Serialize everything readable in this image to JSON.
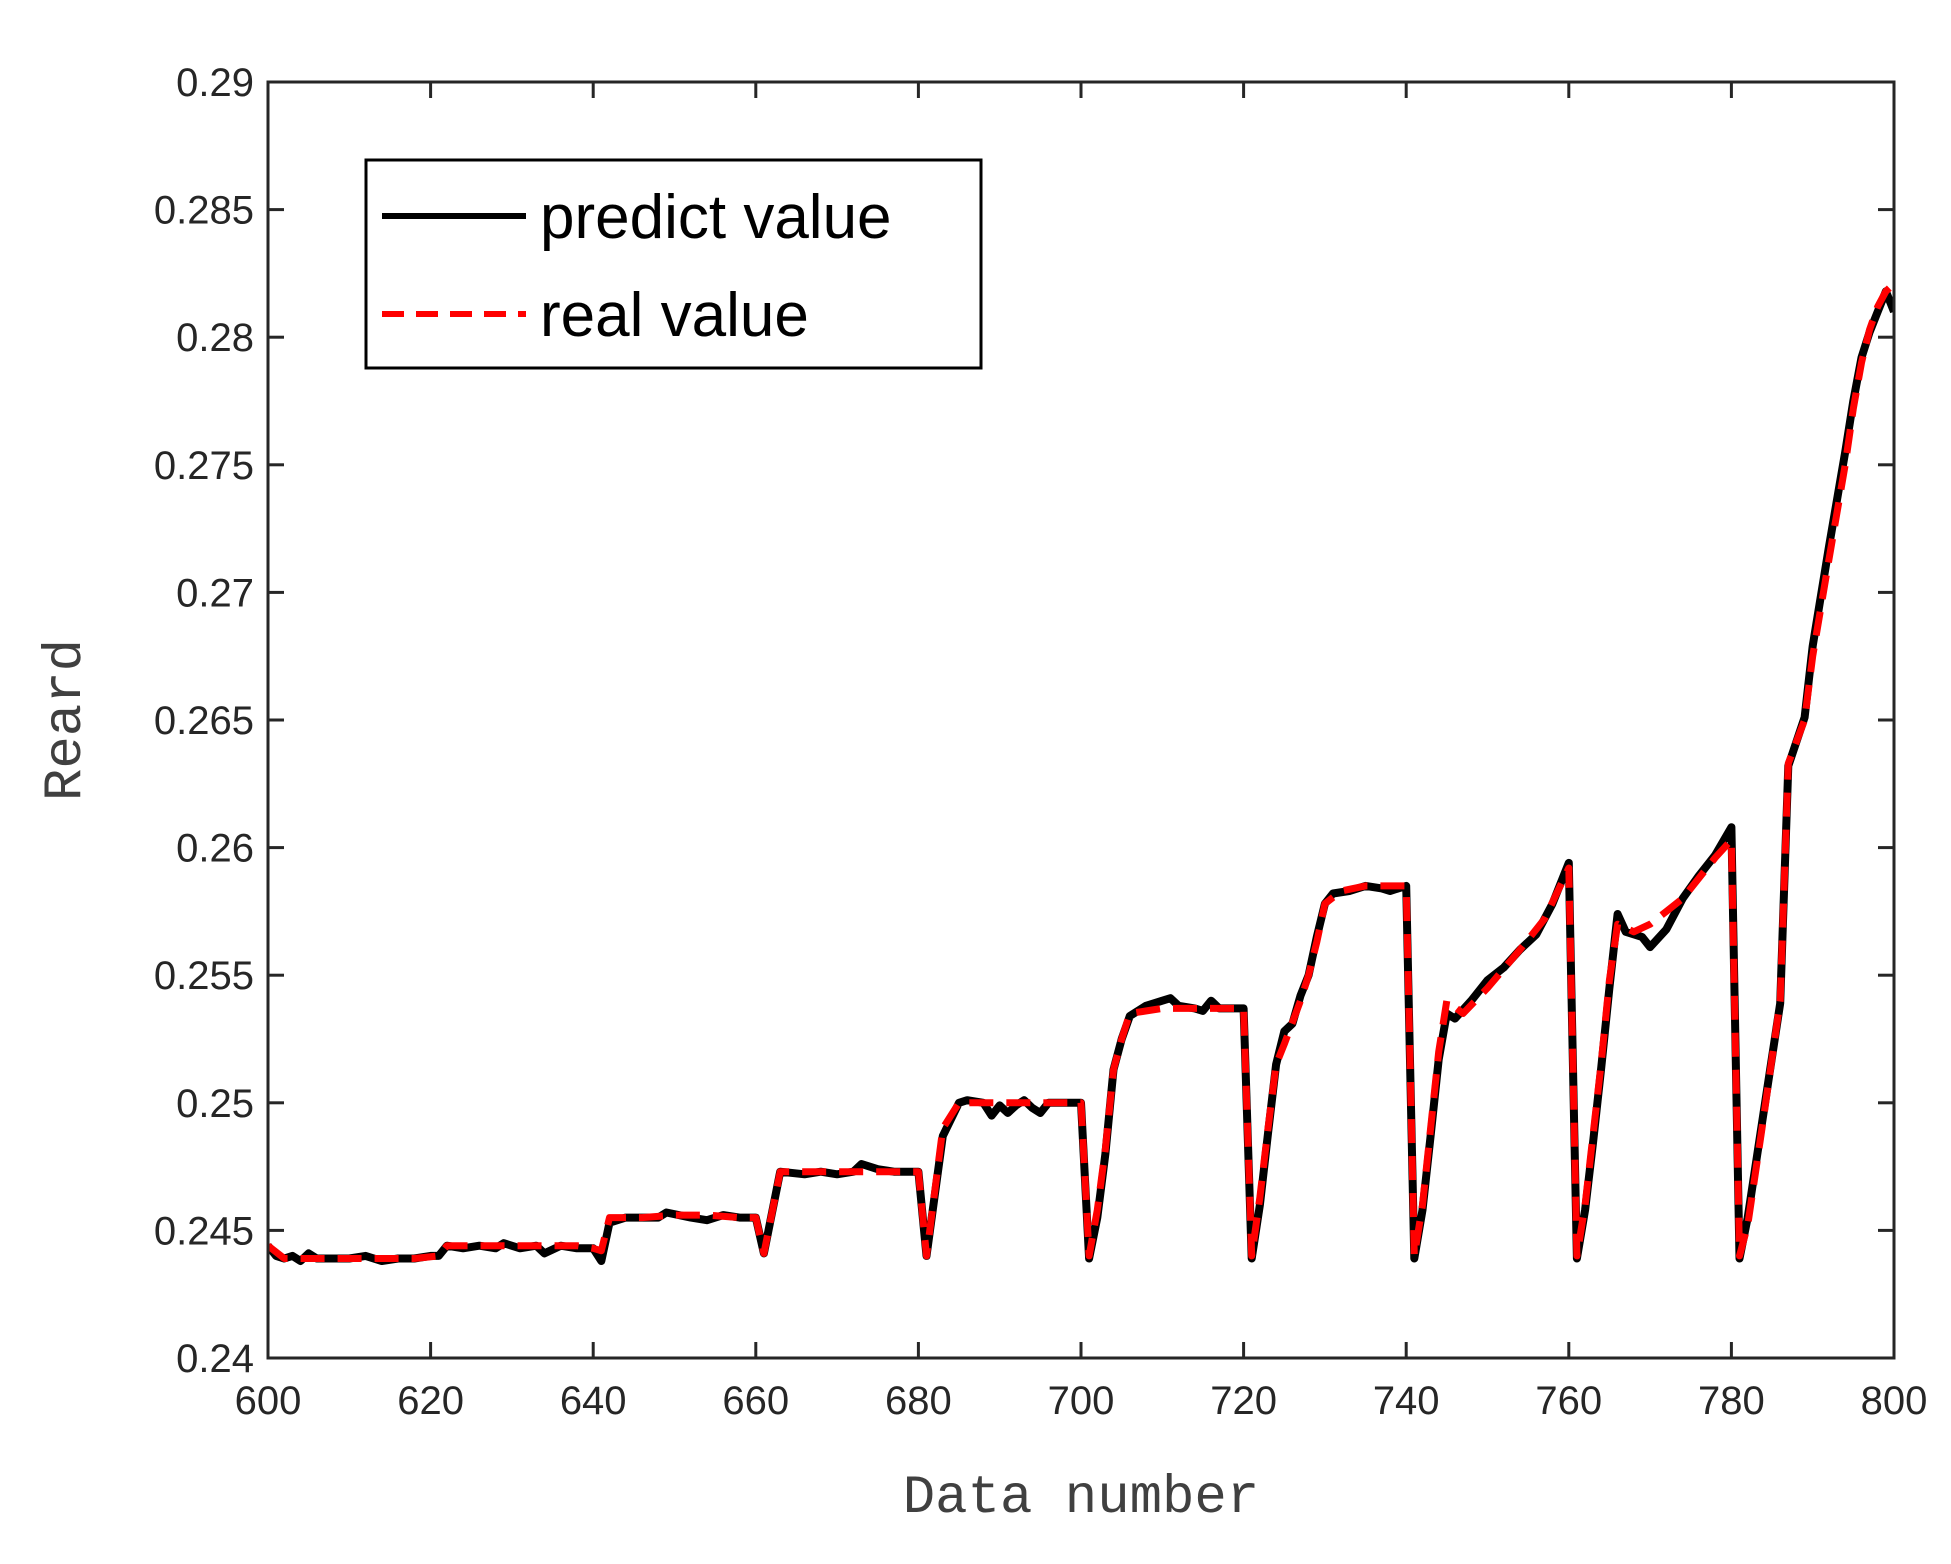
{
  "chart_data": {
    "type": "line",
    "title": "",
    "xlabel": "Data number",
    "ylabel": "Reard",
    "xlim": [
      600,
      800
    ],
    "ylim": [
      0.24,
      0.29
    ],
    "xticks": [
      "600",
      "620",
      "640",
      "660",
      "680",
      "700",
      "720",
      "740",
      "760",
      "780",
      "800"
    ],
    "yticks": [
      "0.24",
      "0.245",
      "0.25",
      "0.255",
      "0.26",
      "0.265",
      "0.27",
      "0.275",
      "0.28",
      "0.285",
      "0.29"
    ],
    "grid": false,
    "legend_position": "top-left",
    "series": [
      {
        "name": "predict value",
        "color": "#000000",
        "style": "solid",
        "points": [
          [
            600,
            0.2444
          ],
          [
            601,
            0.244
          ],
          [
            602,
            0.2439
          ],
          [
            603,
            0.244
          ],
          [
            604,
            0.2438
          ],
          [
            605,
            0.2441
          ],
          [
            606,
            0.2439
          ],
          [
            607,
            0.2439
          ],
          [
            608,
            0.2439
          ],
          [
            610,
            0.2439
          ],
          [
            612,
            0.244
          ],
          [
            614,
            0.2438
          ],
          [
            616,
            0.2439
          ],
          [
            618,
            0.2439
          ],
          [
            620,
            0.244
          ],
          [
            621,
            0.244
          ],
          [
            622,
            0.2444
          ],
          [
            624,
            0.2443
          ],
          [
            626,
            0.2444
          ],
          [
            628,
            0.2443
          ],
          [
            629,
            0.2445
          ],
          [
            631,
            0.2443
          ],
          [
            633,
            0.2444
          ],
          [
            634,
            0.2441
          ],
          [
            636,
            0.2444
          ],
          [
            638,
            0.2443
          ],
          [
            640,
            0.2443
          ],
          [
            641,
            0.2438
          ],
          [
            642,
            0.2453
          ],
          [
            644,
            0.2455
          ],
          [
            646,
            0.2455
          ],
          [
            648,
            0.2455
          ],
          [
            649,
            0.2457
          ],
          [
            652,
            0.2455
          ],
          [
            654,
            0.2454
          ],
          [
            656,
            0.2456
          ],
          [
            658,
            0.2455
          ],
          [
            660,
            0.2455
          ],
          [
            661,
            0.2441
          ],
          [
            663,
            0.2473
          ],
          [
            666,
            0.2472
          ],
          [
            668,
            0.2473
          ],
          [
            670,
            0.2472
          ],
          [
            672,
            0.2473
          ],
          [
            673,
            0.2476
          ],
          [
            675,
            0.2474
          ],
          [
            677,
            0.2473
          ],
          [
            680,
            0.2473
          ],
          [
            681,
            0.244
          ],
          [
            683,
            0.2487
          ],
          [
            685,
            0.25
          ],
          [
            686,
            0.2501
          ],
          [
            688,
            0.25
          ],
          [
            689,
            0.2495
          ],
          [
            690,
            0.2499
          ],
          [
            691,
            0.2496
          ],
          [
            692,
            0.2499
          ],
          [
            693,
            0.2501
          ],
          [
            694,
            0.2498
          ],
          [
            695,
            0.2496
          ],
          [
            696,
            0.25
          ],
          [
            698,
            0.25
          ],
          [
            700,
            0.25
          ],
          [
            701,
            0.2439
          ],
          [
            702,
            0.2455
          ],
          [
            703,
            0.248
          ],
          [
            704,
            0.2513
          ],
          [
            705,
            0.2525
          ],
          [
            706,
            0.2534
          ],
          [
            708,
            0.2538
          ],
          [
            710,
            0.254
          ],
          [
            711,
            0.2541
          ],
          [
            712,
            0.2538
          ],
          [
            714,
            0.2537
          ],
          [
            715,
            0.2536
          ],
          [
            716,
            0.254
          ],
          [
            717,
            0.2537
          ],
          [
            718,
            0.2537
          ],
          [
            720,
            0.2537
          ],
          [
            721,
            0.2439
          ],
          [
            722,
            0.246
          ],
          [
            723,
            0.2488
          ],
          [
            724,
            0.2515
          ],
          [
            725,
            0.2528
          ],
          [
            726,
            0.2531
          ],
          [
            727,
            0.2542
          ],
          [
            728,
            0.255
          ],
          [
            729,
            0.2565
          ],
          [
            730,
            0.2578
          ],
          [
            731,
            0.2582
          ],
          [
            733,
            0.2583
          ],
          [
            735,
            0.2585
          ],
          [
            737,
            0.2584
          ],
          [
            738,
            0.2583
          ],
          [
            740,
            0.2585
          ],
          [
            741,
            0.2439
          ],
          [
            742,
            0.2458
          ],
          [
            743,
            0.2487
          ],
          [
            744,
            0.2517
          ],
          [
            745,
            0.2535
          ],
          [
            746,
            0.2533
          ],
          [
            748,
            0.254
          ],
          [
            750,
            0.2548
          ],
          [
            752,
            0.2553
          ],
          [
            754,
            0.256
          ],
          [
            756,
            0.2566
          ],
          [
            758,
            0.2578
          ],
          [
            760,
            0.2594
          ],
          [
            761,
            0.2439
          ],
          [
            762,
            0.2458
          ],
          [
            763,
            0.2485
          ],
          [
            764,
            0.2514
          ],
          [
            765,
            0.2545
          ],
          [
            766,
            0.2574
          ],
          [
            767,
            0.2567
          ],
          [
            769,
            0.2565
          ],
          [
            770,
            0.2561
          ],
          [
            772,
            0.2568
          ],
          [
            774,
            0.258
          ],
          [
            776,
            0.2589
          ],
          [
            778,
            0.2597
          ],
          [
            780,
            0.2608
          ],
          [
            781,
            0.2439
          ],
          [
            782,
            0.2455
          ],
          [
            784,
            0.2497
          ],
          [
            786,
            0.2539
          ],
          [
            787,
            0.2632
          ],
          [
            789,
            0.2651
          ],
          [
            790,
            0.2679
          ],
          [
            792,
            0.2718
          ],
          [
            794,
            0.2755
          ],
          [
            795,
            0.2775
          ],
          [
            796,
            0.2792
          ],
          [
            797,
            0.2802
          ],
          [
            798,
            0.281
          ],
          [
            799,
            0.2818
          ],
          [
            800,
            0.281
          ]
        ]
      },
      {
        "name": "real value",
        "color": "#ff0000",
        "style": "dashed",
        "points": [
          [
            600,
            0.2444
          ],
          [
            602,
            0.2439
          ],
          [
            606,
            0.2439
          ],
          [
            610,
            0.2439
          ],
          [
            614,
            0.2439
          ],
          [
            618,
            0.2439
          ],
          [
            621,
            0.244
          ],
          [
            622,
            0.2444
          ],
          [
            626,
            0.2444
          ],
          [
            630,
            0.2444
          ],
          [
            634,
            0.2444
          ],
          [
            638,
            0.2444
          ],
          [
            640,
            0.2443
          ],
          [
            641,
            0.2442
          ],
          [
            642,
            0.2455
          ],
          [
            646,
            0.2455
          ],
          [
            650,
            0.2456
          ],
          [
            654,
            0.2456
          ],
          [
            658,
            0.2455
          ],
          [
            660,
            0.2455
          ],
          [
            661,
            0.2441
          ],
          [
            663,
            0.2473
          ],
          [
            668,
            0.2473
          ],
          [
            672,
            0.2473
          ],
          [
            676,
            0.2473
          ],
          [
            680,
            0.2473
          ],
          [
            681,
            0.244
          ],
          [
            683,
            0.249
          ],
          [
            685,
            0.25
          ],
          [
            690,
            0.25
          ],
          [
            695,
            0.25
          ],
          [
            700,
            0.25
          ],
          [
            701,
            0.244
          ],
          [
            702,
            0.2458
          ],
          [
            703,
            0.2482
          ],
          [
            704,
            0.2513
          ],
          [
            705,
            0.2525
          ],
          [
            706,
            0.2535
          ],
          [
            710,
            0.2537
          ],
          [
            715,
            0.2537
          ],
          [
            720,
            0.2537
          ],
          [
            721,
            0.244
          ],
          [
            722,
            0.2463
          ],
          [
            723,
            0.249
          ],
          [
            724,
            0.2515
          ],
          [
            725,
            0.2523
          ],
          [
            727,
            0.254
          ],
          [
            728,
            0.255
          ],
          [
            729,
            0.2563
          ],
          [
            730,
            0.2578
          ],
          [
            732,
            0.2583
          ],
          [
            735,
            0.2585
          ],
          [
            740,
            0.2585
          ],
          [
            741,
            0.244
          ],
          [
            742,
            0.246
          ],
          [
            743,
            0.249
          ],
          [
            744,
            0.252
          ],
          [
            745,
            0.254
          ],
          [
            747,
            0.2535
          ],
          [
            750,
            0.2545
          ],
          [
            754,
            0.256
          ],
          [
            757,
            0.2572
          ],
          [
            760,
            0.2592
          ],
          [
            761,
            0.244
          ],
          [
            762,
            0.246
          ],
          [
            763,
            0.2488
          ],
          [
            764,
            0.2516
          ],
          [
            765,
            0.2548
          ],
          [
            766,
            0.257
          ],
          [
            768,
            0.2567
          ],
          [
            770,
            0.257
          ],
          [
            772,
            0.2575
          ],
          [
            774,
            0.258
          ],
          [
            776,
            0.2588
          ],
          [
            778,
            0.2596
          ],
          [
            780,
            0.2603
          ],
          [
            781,
            0.244
          ],
          [
            782,
            0.2452
          ],
          [
            784,
            0.2495
          ],
          [
            786,
            0.254
          ],
          [
            787,
            0.2633
          ],
          [
            789,
            0.265
          ],
          [
            790,
            0.2675
          ],
          [
            792,
            0.2713
          ],
          [
            794,
            0.275
          ],
          [
            795,
            0.2772
          ],
          [
            796,
            0.279
          ],
          [
            797,
            0.2803
          ],
          [
            798,
            0.2812
          ],
          [
            799,
            0.2818
          ],
          [
            800,
            0.2821
          ]
        ]
      }
    ]
  }
}
